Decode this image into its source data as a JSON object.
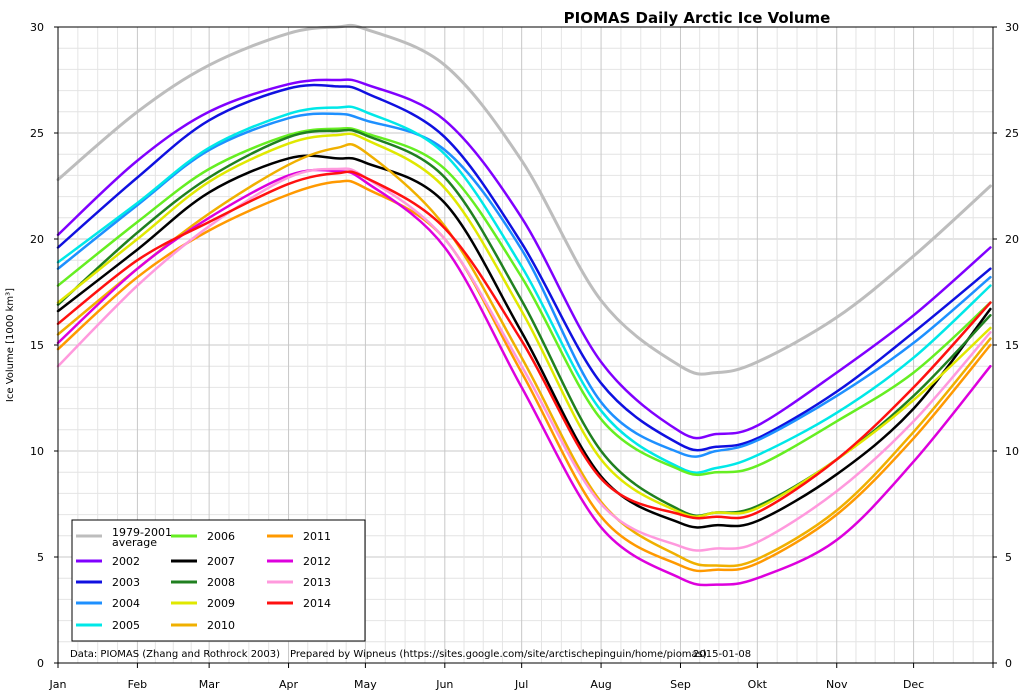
{
  "chart_data": {
    "type": "line",
    "title": "PIOMAS Daily Arctic Ice Volume",
    "ylabel": "Ice Volume [1000 km³]",
    "xlabel": "",
    "ylim": [
      0,
      30
    ],
    "yticks": [
      0,
      5,
      10,
      15,
      20,
      25,
      30
    ],
    "months": [
      "Jan",
      "Feb",
      "Mar",
      "Apr",
      "May",
      "Jun",
      "Jul",
      "Aug",
      "Sep",
      "Okt",
      "Nov",
      "Dec"
    ],
    "x_unit": "day of year",
    "grid": true,
    "legend_position": "bottom-left",
    "source_note": "Data: PIOMAS (Zhang and Rothrock 2003)",
    "prepared_note": "Prepared by Wipneus (https://sites.google.com/site/arctischepinguin/home/piomas)",
    "date_note": "2015-01-08",
    "series": [
      {
        "name": "1979-2001 average",
        "color": "#bdbdbd",
        "width": 3,
        "x": [
          1,
          32,
          60,
          91,
          110,
          121,
          152,
          182,
          213,
          244,
          258,
          274,
          305,
          335,
          365
        ],
        "y": [
          22.8,
          26.0,
          28.2,
          29.7,
          30.0,
          29.9,
          28.2,
          23.7,
          17.1,
          14.0,
          13.7,
          14.2,
          16.3,
          19.2,
          22.5
        ]
      },
      {
        "name": "2002",
        "color": "#8000ff",
        "width": 2.5,
        "x": [
          1,
          32,
          60,
          91,
          110,
          121,
          152,
          182,
          213,
          244,
          258,
          274,
          305,
          335,
          365
        ],
        "y": [
          20.2,
          23.7,
          26.0,
          27.3,
          27.5,
          27.3,
          25.6,
          21.0,
          14.2,
          10.9,
          10.8,
          11.2,
          13.7,
          16.4,
          19.6
        ]
      },
      {
        "name": "2003",
        "color": "#1010e0",
        "width": 2.5,
        "x": [
          1,
          32,
          60,
          91,
          110,
          121,
          152,
          182,
          213,
          244,
          258,
          274,
          305,
          335,
          365
        ],
        "y": [
          19.6,
          22.9,
          25.6,
          27.1,
          27.2,
          26.9,
          24.8,
          19.8,
          13.2,
          10.3,
          10.2,
          10.6,
          12.8,
          15.6,
          18.6
        ]
      },
      {
        "name": "2004",
        "color": "#1e90ff",
        "width": 2.5,
        "x": [
          1,
          32,
          60,
          91,
          110,
          121,
          152,
          182,
          213,
          244,
          258,
          274,
          305,
          335,
          365
        ],
        "y": [
          18.6,
          21.6,
          24.2,
          25.7,
          25.9,
          25.6,
          24.2,
          19.5,
          12.3,
          9.9,
          10.0,
          10.5,
          12.6,
          15.1,
          18.2
        ]
      },
      {
        "name": "2005",
        "color": "#00e8e8",
        "width": 2.5,
        "x": [
          1,
          32,
          60,
          91,
          110,
          121,
          152,
          182,
          213,
          244,
          258,
          274,
          305,
          335,
          365
        ],
        "y": [
          18.9,
          21.7,
          24.3,
          25.9,
          26.2,
          26.0,
          24.0,
          18.7,
          11.9,
          9.2,
          9.2,
          9.8,
          11.8,
          14.4,
          17.8
        ]
      },
      {
        "name": "2006",
        "color": "#66ee22",
        "width": 2.5,
        "x": [
          1,
          32,
          60,
          91,
          110,
          121,
          152,
          182,
          213,
          244,
          258,
          274,
          305,
          335,
          365
        ],
        "y": [
          17.8,
          20.8,
          23.3,
          24.9,
          25.2,
          25.0,
          23.3,
          18.2,
          11.5,
          9.1,
          9.0,
          9.3,
          11.4,
          13.7,
          17.0
        ]
      },
      {
        "name": "2007",
        "color": "#000000",
        "width": 2.5,
        "x": [
          1,
          32,
          60,
          91,
          110,
          121,
          152,
          182,
          213,
          244,
          258,
          274,
          305,
          335,
          365
        ],
        "y": [
          16.6,
          19.5,
          22.2,
          23.8,
          23.8,
          23.6,
          21.7,
          15.6,
          8.8,
          6.6,
          6.5,
          6.7,
          8.9,
          12.0,
          16.7
        ]
      },
      {
        "name": "2008",
        "color": "#208020",
        "width": 2.5,
        "x": [
          1,
          32,
          60,
          91,
          110,
          121,
          152,
          182,
          213,
          244,
          258,
          274,
          305,
          335,
          365
        ],
        "y": [
          16.9,
          20.3,
          22.9,
          24.8,
          25.1,
          24.9,
          22.9,
          17.1,
          10.0,
          7.2,
          7.1,
          7.4,
          9.6,
          12.6,
          16.4
        ]
      },
      {
        "name": "2009",
        "color": "#e0e800",
        "width": 2.5,
        "x": [
          1,
          32,
          60,
          91,
          110,
          121,
          152,
          182,
          213,
          244,
          258,
          274,
          305,
          335,
          365
        ],
        "y": [
          17.0,
          20.0,
          22.7,
          24.5,
          24.9,
          24.7,
          22.4,
          16.6,
          9.6,
          7.1,
          7.1,
          7.3,
          9.6,
          12.4,
          15.8
        ]
      },
      {
        "name": "2010",
        "color": "#f0b000",
        "width": 2.5,
        "x": [
          1,
          32,
          60,
          91,
          110,
          121,
          152,
          182,
          213,
          244,
          258,
          274,
          305,
          335,
          365
        ],
        "y": [
          15.5,
          18.6,
          21.2,
          23.5,
          24.3,
          24.1,
          20.6,
          14.4,
          7.6,
          5.0,
          4.6,
          4.9,
          7.2,
          10.9,
          15.3
        ]
      },
      {
        "name": "2011",
        "color": "#ff9900",
        "width": 2.5,
        "x": [
          1,
          32,
          60,
          91,
          110,
          121,
          152,
          182,
          213,
          244,
          258,
          274,
          305,
          335,
          365
        ],
        "y": [
          14.8,
          18.2,
          20.4,
          22.1,
          22.7,
          22.4,
          20.0,
          13.7,
          6.9,
          4.6,
          4.4,
          4.7,
          7.0,
          10.6,
          15.0
        ]
      },
      {
        "name": "2012",
        "color": "#dd00dd",
        "width": 2.5,
        "x": [
          1,
          32,
          60,
          91,
          110,
          121,
          152,
          182,
          213,
          244,
          258,
          274,
          305,
          335,
          365
        ],
        "y": [
          15.1,
          18.6,
          21.0,
          23.0,
          23.2,
          22.7,
          19.6,
          13.0,
          6.4,
          4.0,
          3.7,
          4.0,
          5.8,
          9.5,
          14.0
        ]
      },
      {
        "name": "2013",
        "color": "#ff99dd",
        "width": 2.5,
        "x": [
          1,
          32,
          60,
          91,
          110,
          121,
          152,
          182,
          213,
          244,
          258,
          274,
          305,
          335,
          365
        ],
        "y": [
          14.0,
          17.8,
          20.6,
          22.9,
          23.3,
          22.9,
          20.0,
          14.0,
          7.5,
          5.5,
          5.4,
          5.7,
          8.1,
          11.4,
          15.6
        ]
      },
      {
        "name": "2014",
        "color": "#ff1010",
        "width": 2.5,
        "x": [
          1,
          32,
          60,
          91,
          110,
          121,
          152,
          182,
          213,
          244,
          258,
          274,
          305,
          335,
          365
        ],
        "y": [
          16.0,
          19.0,
          20.8,
          22.6,
          23.1,
          22.9,
          20.5,
          15.2,
          8.7,
          7.0,
          6.9,
          7.1,
          9.6,
          13.0,
          17.0
        ]
      }
    ]
  }
}
